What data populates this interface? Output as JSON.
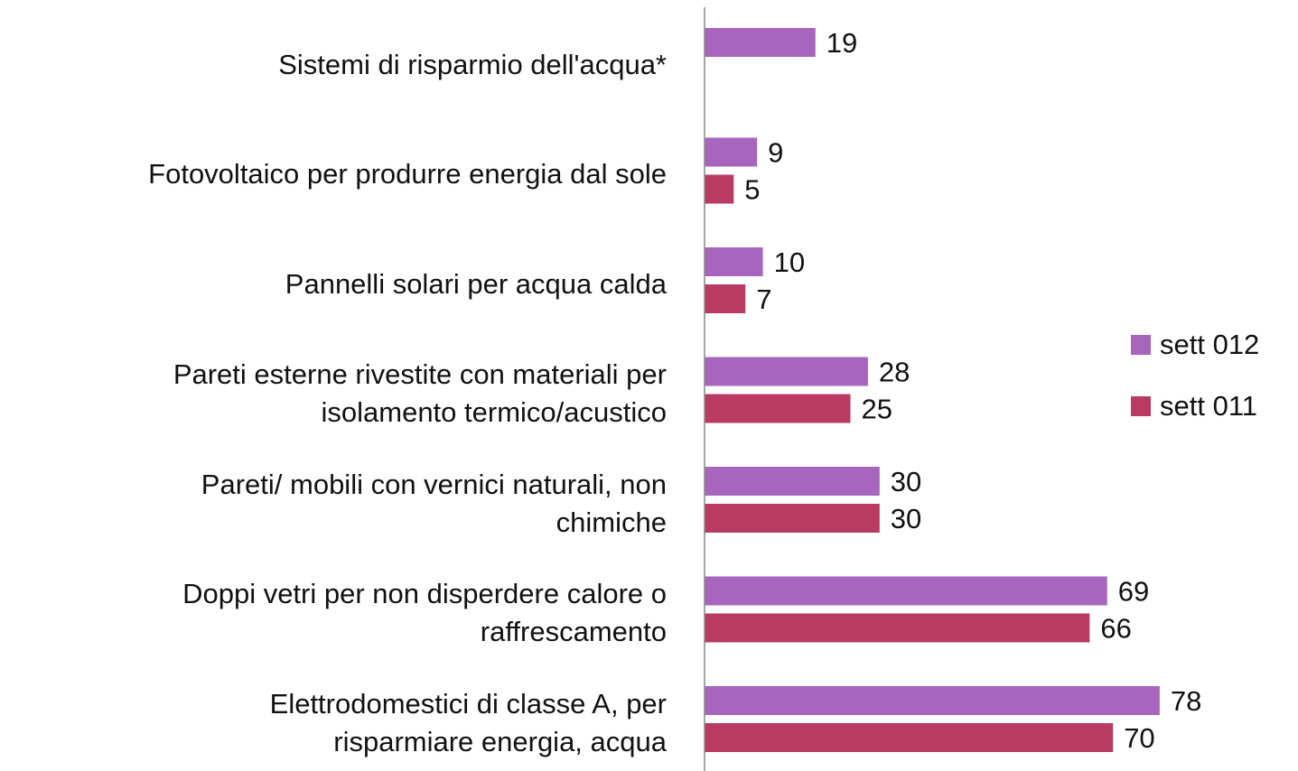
{
  "chart_data": {
    "type": "barh",
    "categories": [
      "Sistemi di risparmio dell'acqua*",
      "Fotovoltaico per produrre energia dal sole",
      "Pannelli solari per acqua calda",
      "Pareti esterne rivestite con materiali per\nisolamento termico/acustico",
      "Pareti/ mobili con vernici naturali, non\nchimiche",
      "Doppi vetri per non disperdere calore o\nraffrescamento",
      "Elettrodomestici di classe A,  per\nrisparmiare energia, acqua"
    ],
    "series": [
      {
        "name": "sett 012",
        "color": "#a865be",
        "values": [
          19,
          9,
          10,
          28,
          30,
          69,
          78
        ]
      },
      {
        "name": "sett 011",
        "color": "#b93b64",
        "values": [
          null,
          5,
          7,
          25,
          30,
          66,
          70
        ]
      }
    ],
    "xlim": [
      0,
      100
    ],
    "legend": "right"
  }
}
